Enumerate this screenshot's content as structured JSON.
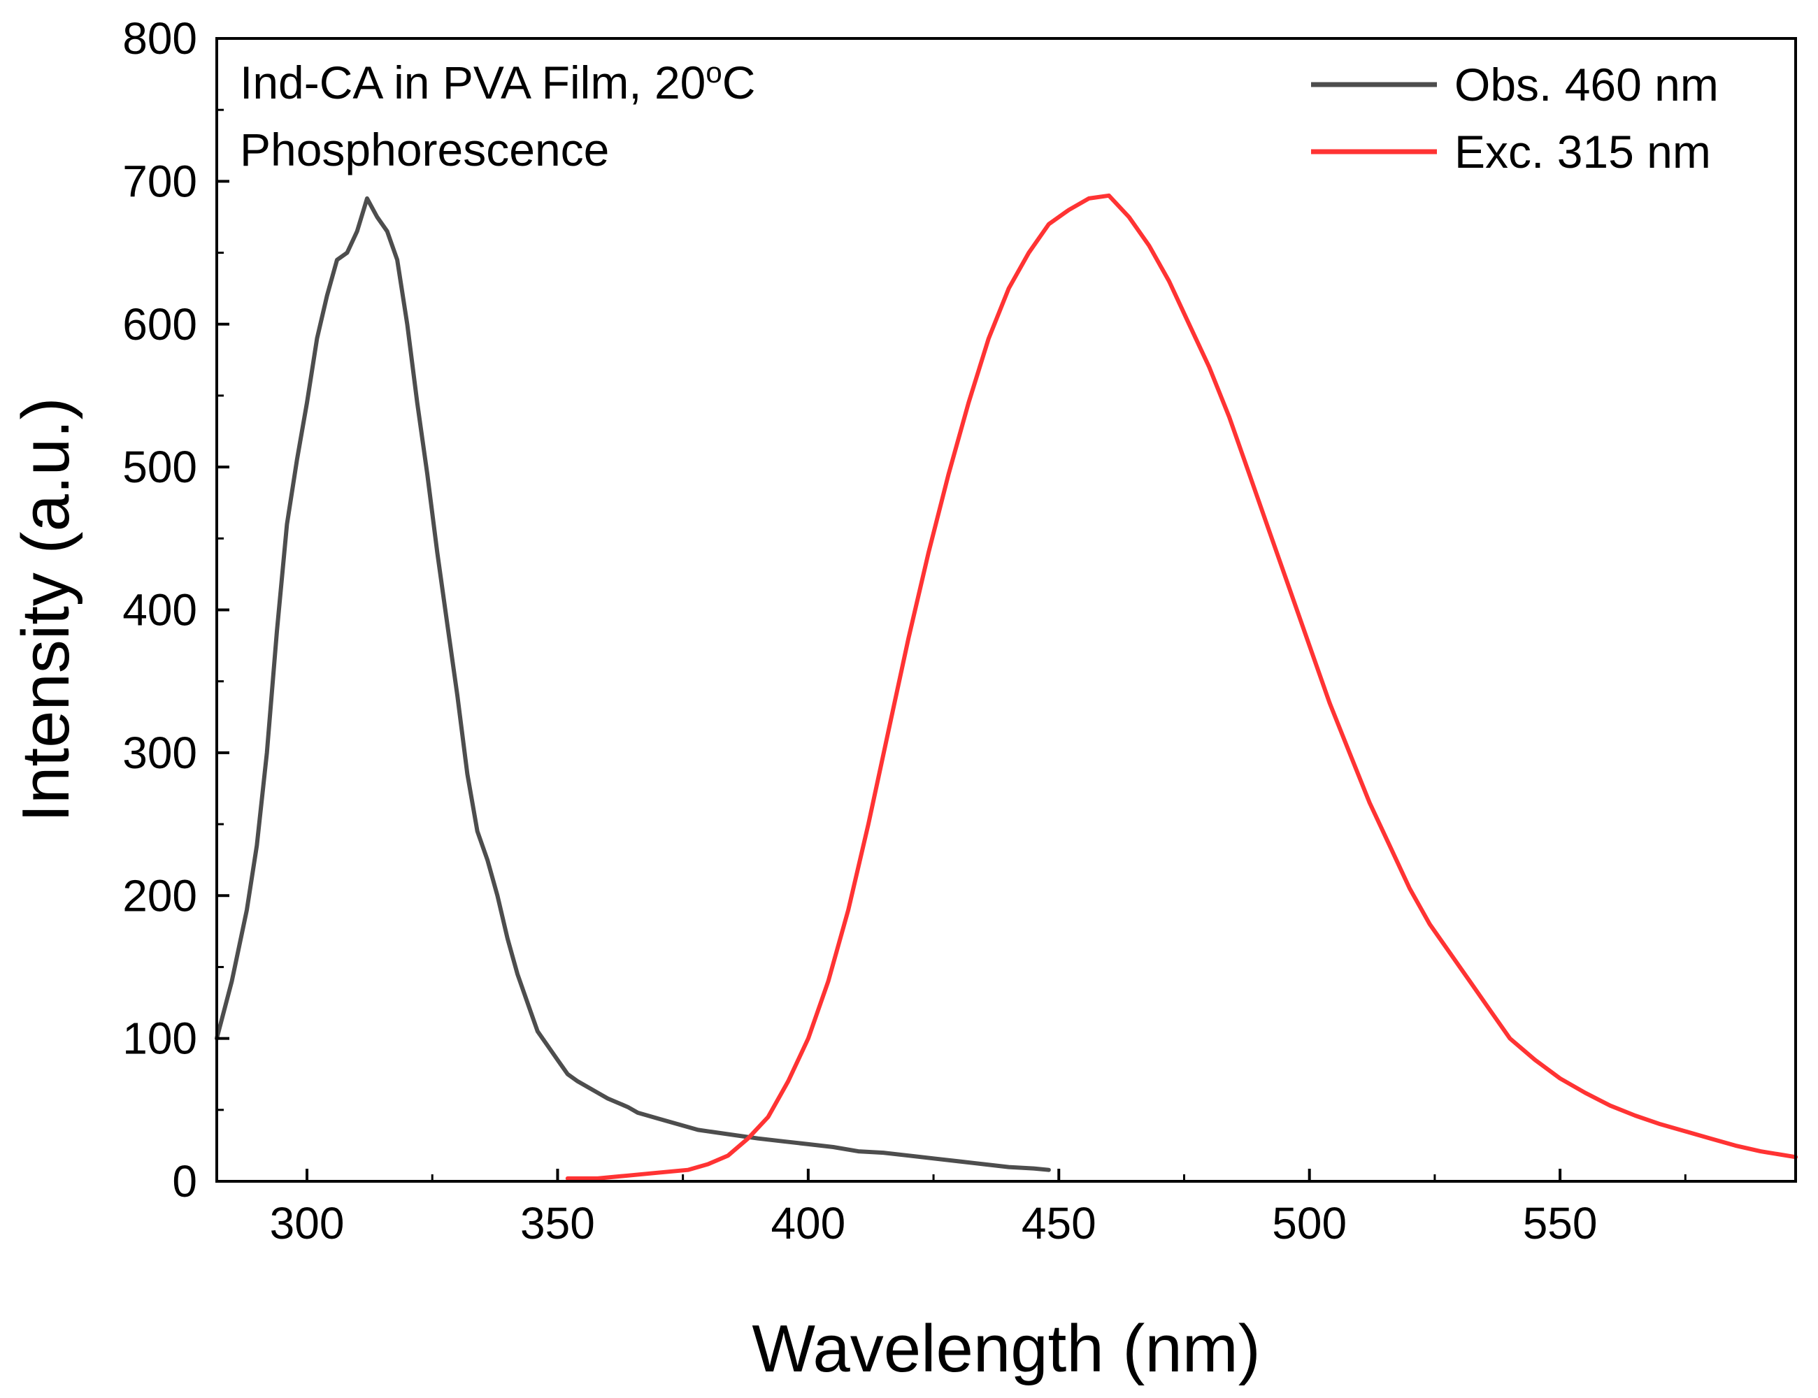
{
  "chart_data": {
    "type": "line",
    "title": "",
    "xlabel": "Wavelength (nm)",
    "ylabel": "Intensity (a.u.)",
    "xlim": [
      282,
      597
    ],
    "ylim": [
      0,
      800
    ],
    "x_ticks": [
      300,
      350,
      400,
      450,
      500,
      550
    ],
    "y_ticks": [
      0,
      100,
      200,
      300,
      400,
      500,
      600,
      700,
      800
    ],
    "grid": false,
    "legend_position": "top-right",
    "annotation": {
      "line1_prefix": "Ind-CA in PVA Film, 20",
      "line1_superscript": "o",
      "line1_suffix": "C",
      "line2": "Phosphorescence"
    },
    "series": [
      {
        "name": "Obs. 460 nm",
        "color": "#4d4d4d",
        "x": [
          282,
          285,
          288,
          290,
          292,
          294,
          296,
          298,
          300,
          302,
          304,
          306,
          308,
          310,
          312,
          314,
          316,
          318,
          320,
          322,
          324,
          326,
          328,
          330,
          332,
          334,
          336,
          338,
          340,
          342,
          344,
          346,
          348,
          350,
          352,
          354,
          356,
          358,
          360,
          362,
          364,
          366,
          368,
          370,
          374,
          378,
          382,
          386,
          390,
          395,
          400,
          405,
          410,
          415,
          420,
          425,
          430,
          435,
          440,
          445,
          448
        ],
        "values": [
          100,
          140,
          190,
          235,
          300,
          385,
          460,
          505,
          545,
          590,
          620,
          645,
          650,
          665,
          688,
          675,
          665,
          645,
          600,
          545,
          495,
          440,
          390,
          340,
          285,
          245,
          225,
          200,
          170,
          145,
          125,
          105,
          95,
          85,
          75,
          70,
          66,
          62,
          58,
          55,
          52,
          48,
          46,
          44,
          40,
          36,
          34,
          32,
          30,
          28,
          26,
          24,
          21,
          20,
          18,
          16,
          14,
          12,
          10,
          9,
          8
        ]
      },
      {
        "name": "Exc. 315 nm",
        "color": "#ff3333",
        "x": [
          352,
          358,
          364,
          370,
          376,
          380,
          384,
          388,
          392,
          396,
          400,
          404,
          408,
          412,
          416,
          420,
          424,
          428,
          432,
          436,
          440,
          444,
          448,
          452,
          456,
          460,
          464,
          468,
          472,
          476,
          480,
          484,
          488,
          492,
          496,
          500,
          504,
          508,
          512,
          516,
          520,
          524,
          528,
          532,
          536,
          540,
          545,
          550,
          555,
          560,
          565,
          570,
          575,
          580,
          585,
          590,
          597
        ],
        "values": [
          2,
          2,
          4,
          6,
          8,
          12,
          18,
          30,
          45,
          70,
          100,
          140,
          190,
          250,
          315,
          380,
          440,
          495,
          545,
          590,
          625,
          650,
          670,
          680,
          688,
          690,
          675,
          655,
          630,
          600,
          570,
          535,
          495,
          455,
          415,
          375,
          335,
          300,
          265,
          235,
          205,
          180,
          160,
          140,
          120,
          100,
          85,
          72,
          62,
          53,
          46,
          40,
          35,
          30,
          25,
          21,
          17
        ]
      }
    ]
  }
}
